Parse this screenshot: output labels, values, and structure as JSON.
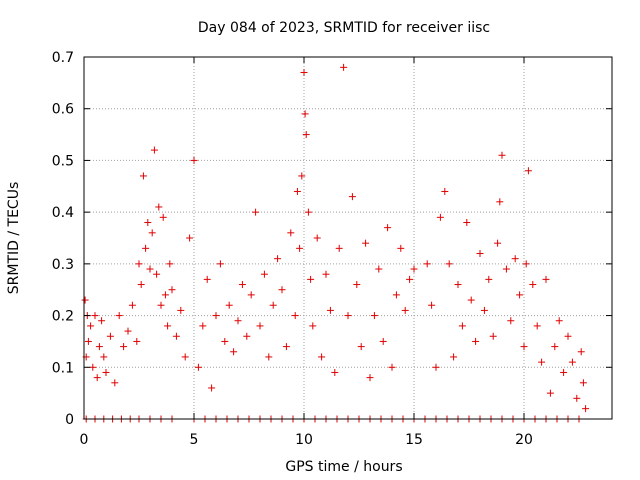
{
  "chart_data": {
    "type": "scatter",
    "title": "Day 084 of 2023, SRMTID for receiver iisc",
    "xlabel": "GPS time / hours",
    "ylabel": "SRMTID / TECUs",
    "xlim": [
      0,
      24
    ],
    "ylim": [
      0,
      0.7
    ],
    "xticks": [
      0,
      5,
      10,
      15,
      20
    ],
    "yticks": [
      0,
      0.1,
      0.2,
      0.3,
      0.4,
      0.5,
      0.6,
      0.7
    ],
    "xtick_labels": [
      "0",
      "5",
      "10",
      "15",
      "20"
    ],
    "ytick_labels": [
      "0",
      "0.1",
      "0.2",
      "0.3",
      "0.4",
      "0.5",
      "0.6",
      "0.7"
    ],
    "grid": true,
    "marker": "+",
    "color": "#e00000",
    "series": [
      {
        "name": "SRMTID",
        "x": [
          0.05,
          0.1,
          0.15,
          0.2,
          0.3,
          0.4,
          0.5,
          0.6,
          0.7,
          0.8,
          0.9,
          1.0,
          1.2,
          1.4,
          1.6,
          1.8,
          2.0,
          2.2,
          2.4,
          2.5,
          2.6,
          2.7,
          2.8,
          2.9,
          3.0,
          3.1,
          3.2,
          3.3,
          3.4,
          3.5,
          3.6,
          3.7,
          3.8,
          3.9,
          4.0,
          4.2,
          4.4,
          4.6,
          4.8,
          5.0,
          5.2,
          5.4,
          5.6,
          5.8,
          6.0,
          6.2,
          6.4,
          6.6,
          6.8,
          7.0,
          7.2,
          7.4,
          7.6,
          7.8,
          8.0,
          8.2,
          8.4,
          8.6,
          8.8,
          9.0,
          9.2,
          9.4,
          9.6,
          9.7,
          9.8,
          9.9,
          10.0,
          10.05,
          10.1,
          10.2,
          10.3,
          10.4,
          10.6,
          10.8,
          11.0,
          11.2,
          11.4,
          11.6,
          11.8,
          12.0,
          12.2,
          12.4,
          12.6,
          12.8,
          13.0,
          13.2,
          13.4,
          13.6,
          13.8,
          14.0,
          14.2,
          14.4,
          14.6,
          14.8,
          15.0,
          15.6,
          15.8,
          16.0,
          16.2,
          16.4,
          16.6,
          16.8,
          17.0,
          17.2,
          17.4,
          17.6,
          17.8,
          18.0,
          18.2,
          18.4,
          18.6,
          18.8,
          18.9,
          19.0,
          19.2,
          19.4,
          19.6,
          19.8,
          20.0,
          20.1,
          20.2,
          20.4,
          20.6,
          20.8,
          21.0,
          21.2,
          21.4,
          21.6,
          21.8,
          22.0,
          22.2,
          22.4,
          22.6,
          22.7,
          22.8
        ],
        "y": [
          0.23,
          0.12,
          0.2,
          0.15,
          0.18,
          0.1,
          0.2,
          0.08,
          0.14,
          0.19,
          0.12,
          0.09,
          0.16,
          0.07,
          0.2,
          0.14,
          0.17,
          0.22,
          0.15,
          0.3,
          0.26,
          0.47,
          0.33,
          0.38,
          0.29,
          0.36,
          0.52,
          0.28,
          0.41,
          0.22,
          0.39,
          0.24,
          0.18,
          0.3,
          0.25,
          0.16,
          0.21,
          0.12,
          0.35,
          0.5,
          0.1,
          0.18,
          0.27,
          0.06,
          0.2,
          0.3,
          0.15,
          0.22,
          0.13,
          0.19,
          0.26,
          0.16,
          0.24,
          0.4,
          0.18,
          0.28,
          0.12,
          0.22,
          0.31,
          0.25,
          0.14,
          0.36,
          0.2,
          0.44,
          0.33,
          0.47,
          0.67,
          0.59,
          0.55,
          0.4,
          0.27,
          0.18,
          0.35,
          0.12,
          0.28,
          0.21,
          0.09,
          0.33,
          0.68,
          0.2,
          0.43,
          0.26,
          0.14,
          0.34,
          0.08,
          0.2,
          0.29,
          0.15,
          0.37,
          0.1,
          0.24,
          0.33,
          0.21,
          0.27,
          0.29,
          0.3,
          0.22,
          0.1,
          0.39,
          0.44,
          0.3,
          0.12,
          0.26,
          0.18,
          0.38,
          0.23,
          0.15,
          0.32,
          0.21,
          0.27,
          0.16,
          0.34,
          0.42,
          0.51,
          0.29,
          0.19,
          0.31,
          0.24,
          0.14,
          0.3,
          0.48,
          0.26,
          0.18,
          0.11,
          0.27,
          0.05,
          0.14,
          0.19,
          0.09,
          0.16,
          0.11,
          0.04,
          0.13,
          0.07,
          0.02
        ],
        "zero_baseline_x": [
          0.1,
          0.5,
          0.9,
          1.3,
          1.7,
          2.1,
          2.5,
          3.0,
          3.5,
          4.0,
          5.0,
          5.5,
          6.0,
          6.5,
          7.0,
          7.5,
          8.0,
          8.5,
          9.0,
          9.5,
          10.0,
          10.5,
          11.0,
          11.5,
          12.0,
          12.5,
          13.0,
          13.5,
          14.0,
          14.5,
          15.0,
          15.5,
          16.0,
          16.5,
          17.0,
          17.5,
          18.0,
          18.5,
          19.0,
          19.5,
          20.0,
          20.5,
          21.0,
          21.5,
          22.0,
          22.5
        ]
      }
    ]
  }
}
